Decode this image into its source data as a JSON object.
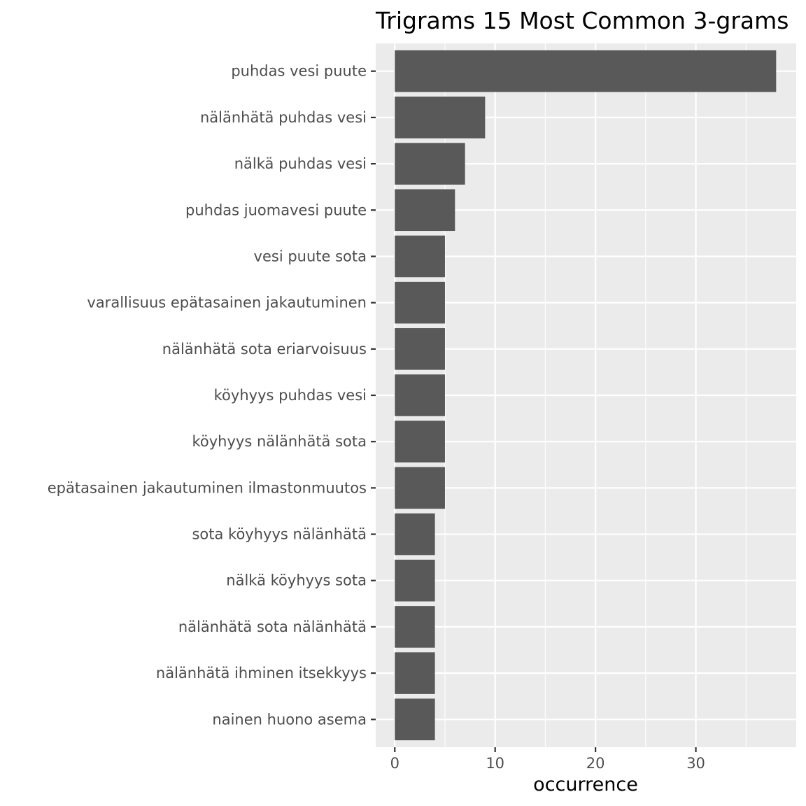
{
  "chart_data": {
    "type": "bar",
    "orientation": "horizontal",
    "title": "Trigrams 15 Most Common 3-grams",
    "xlabel": "occurrence",
    "ylabel": "",
    "xlim": [
      -1.9,
      40.0
    ],
    "x_ticks": [
      0,
      10,
      20,
      30
    ],
    "x_tick_labels": [
      "0",
      "10",
      "20",
      "30"
    ],
    "grid": true,
    "legend": "none",
    "colors": {
      "bar": "#595959",
      "panel": "#ebebeb",
      "grid": "#ffffff"
    },
    "categories": [
      "puhdas vesi puute",
      "nälänhätä puhdas vesi",
      "nälkä puhdas vesi",
      "puhdas juomavesi puute",
      "vesi puute sota",
      "varallisuus epätasainen jakautuminen",
      "nälänhätä sota eriarvoisuus",
      "köyhyys puhdas vesi",
      "köyhyys nälänhätä sota",
      "epätasainen jakautuminen ilmastonmuutos",
      "sota köyhyys nälänhätä",
      "nälkä köyhyys sota",
      "nälänhätä sota nälänhätä",
      "nälänhätä ihminen itsekkyys",
      "nainen huono asema"
    ],
    "values": [
      38,
      9,
      7,
      6,
      5,
      5,
      5,
      5,
      5,
      5,
      4,
      4,
      4,
      4,
      4
    ]
  }
}
